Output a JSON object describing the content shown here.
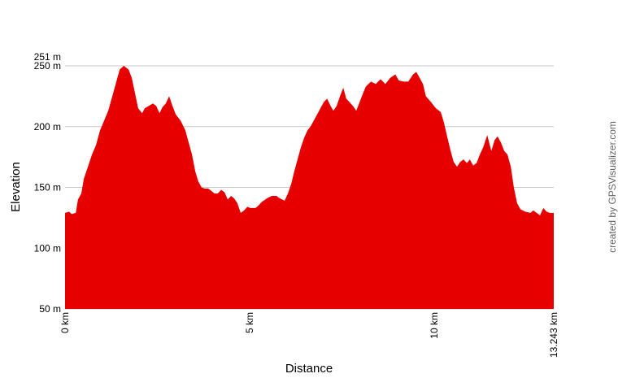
{
  "chart_data": {
    "type": "area",
    "xlabel": "Distance",
    "ylabel": "Elevation",
    "credit": "created by GPSVisualizer.com",
    "xlim": [
      0,
      13.243
    ],
    "ylim": [
      50,
      250
    ],
    "max_label": "251 m",
    "grid": true,
    "fill_color": "#e60000",
    "grid_color": "#c8c8c8",
    "x_ticks": [
      {
        "value": 0,
        "label": "0 km"
      },
      {
        "value": 5,
        "label": "5 km"
      },
      {
        "value": 10,
        "label": "10 km"
      },
      {
        "value": 13.243,
        "label": "13.243 km"
      }
    ],
    "y_ticks": [
      {
        "value": 50,
        "label": "50 m"
      },
      {
        "value": 100,
        "label": "100 m"
      },
      {
        "value": 150,
        "label": "150 m"
      },
      {
        "value": 200,
        "label": "200 m"
      },
      {
        "value": 250,
        "label": "250 m"
      }
    ],
    "distance_km": [
      0,
      0.11,
      0.18,
      0.29,
      0.35,
      0.44,
      0.51,
      0.62,
      0.73,
      0.84,
      0.95,
      1.06,
      1.17,
      1.28,
      1.39,
      1.48,
      1.59,
      1.72,
      1.81,
      1.9,
      1.98,
      2.09,
      2.16,
      2.27,
      2.38,
      2.47,
      2.56,
      2.64,
      2.73,
      2.82,
      2.91,
      3.0,
      3.13,
      3.26,
      3.35,
      3.44,
      3.53,
      3.61,
      3.7,
      3.79,
      3.88,
      3.97,
      4.05,
      4.14,
      4.23,
      4.32,
      4.41,
      4.5,
      4.58,
      4.67,
      4.76,
      4.85,
      4.94,
      5.02,
      5.16,
      5.24,
      5.33,
      5.47,
      5.6,
      5.73,
      5.82,
      5.95,
      6.04,
      6.13,
      6.21,
      6.3,
      6.39,
      6.48,
      6.57,
      6.65,
      6.74,
      6.83,
      6.92,
      7.01,
      7.1,
      7.18,
      7.27,
      7.36,
      7.45,
      7.54,
      7.62,
      7.71,
      7.8,
      7.89,
      7.98,
      8.07,
      8.15,
      8.29,
      8.42,
      8.55,
      8.68,
      8.81,
      8.95,
      9.04,
      9.17,
      9.3,
      9.43,
      9.52,
      9.61,
      9.7,
      9.78,
      9.92,
      10.05,
      10.18,
      10.27,
      10.36,
      10.45,
      10.53,
      10.62,
      10.71,
      10.8,
      10.89,
      10.97,
      11.06,
      11.15,
      11.24,
      11.33,
      11.44,
      11.55,
      11.64,
      11.72,
      11.81,
      11.9,
      11.99,
      12.08,
      12.16,
      12.25,
      12.34,
      12.47,
      12.61,
      12.69,
      12.78,
      12.87,
      12.96,
      13.05,
      13.13,
      13.243
    ],
    "elevation_m": [
      129,
      130,
      128,
      129,
      140,
      145,
      157,
      167,
      177,
      185,
      197,
      205,
      213,
      225,
      237,
      247,
      250,
      247,
      240,
      227,
      215,
      211,
      215,
      217,
      219,
      217,
      211,
      216,
      219,
      225,
      217,
      210,
      205,
      197,
      187,
      177,
      163,
      155,
      150,
      149,
      149,
      147,
      145,
      145,
      148,
      146,
      140,
      143,
      141,
      137,
      129,
      131,
      134,
      133,
      133,
      135,
      138,
      141,
      143,
      143,
      141,
      139,
      145,
      153,
      163,
      173,
      183,
      191,
      197,
      200,
      205,
      210,
      215,
      220,
      223,
      218,
      213,
      217,
      225,
      232,
      223,
      220,
      217,
      213,
      220,
      227,
      233,
      237,
      235,
      239,
      235,
      240,
      243,
      238,
      237,
      237,
      243,
      245,
      240,
      235,
      225,
      220,
      215,
      212,
      203,
      191,
      180,
      171,
      167,
      171,
      173,
      170,
      173,
      168,
      170,
      177,
      183,
      193,
      180,
      189,
      192,
      187,
      180,
      177,
      167,
      150,
      137,
      132,
      130,
      129,
      131,
      129,
      127,
      133,
      130,
      129,
      129
    ]
  }
}
